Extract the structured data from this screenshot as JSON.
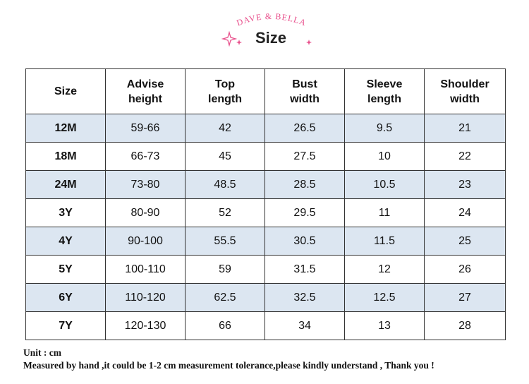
{
  "brand": "DAVE & BELLA",
  "title": "Size",
  "table": {
    "header": [
      "Size",
      [
        "Advise",
        "height"
      ],
      [
        "Top",
        "length"
      ],
      [
        "Bust",
        "width"
      ],
      [
        "Sleeve",
        "length"
      ],
      [
        "Shoulder",
        "width"
      ]
    ],
    "rows": [
      [
        "12M",
        "59-66",
        42,
        26.5,
        9.5,
        21
      ],
      [
        "18M",
        "66-73",
        45,
        27.5,
        10,
        22
      ],
      [
        "24M",
        "73-80",
        48.5,
        28.5,
        10.5,
        23
      ],
      [
        "3Y",
        "80-90",
        52,
        29.5,
        11,
        24
      ],
      [
        "4Y",
        "90-100",
        55.5,
        30.5,
        11.5,
        25
      ],
      [
        "5Y",
        "100-110",
        59,
        31.5,
        12,
        26
      ],
      [
        "6Y",
        "110-120",
        62.5,
        32.5,
        12.5,
        27
      ],
      [
        "7Y",
        "120-130",
        66,
        34,
        13,
        28
      ]
    ]
  },
  "notes": [
    "Unit : cm",
    "Measured by hand ,it could be 1-2 cm measurement tolerance,please kindly understand , Thank you !"
  ]
}
